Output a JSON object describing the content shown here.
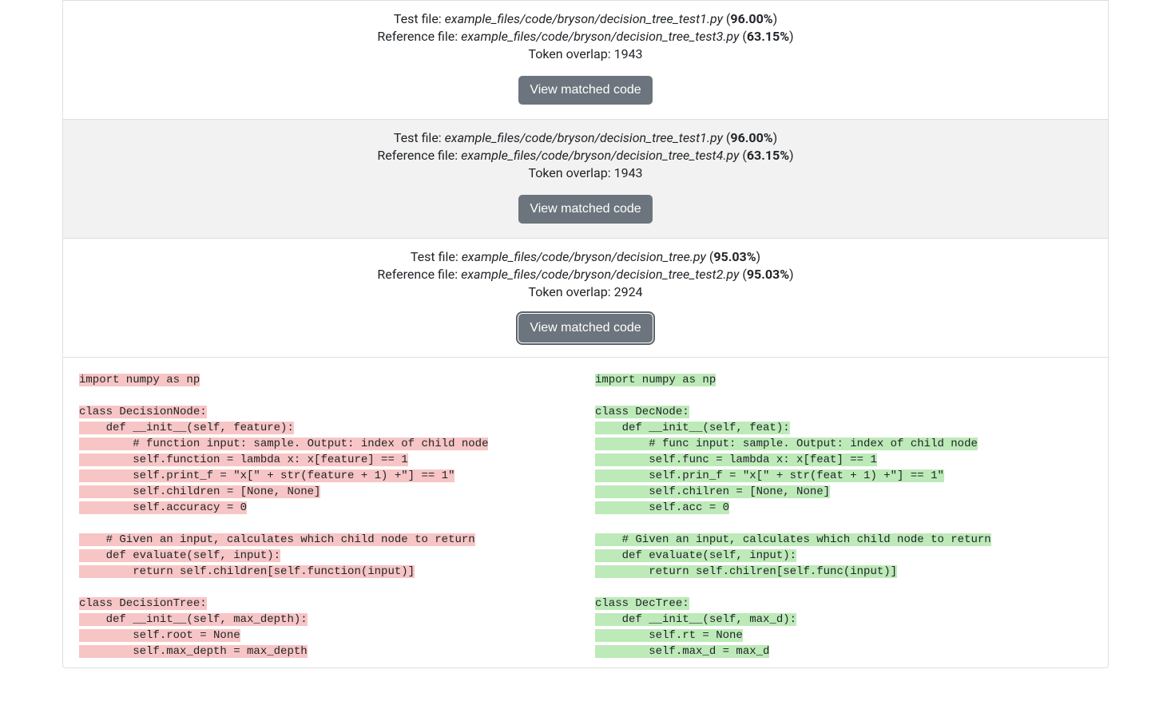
{
  "labels": {
    "test_file": "Test file: ",
    "reference_file": "Reference file: ",
    "token_overlap": "Token overlap: ",
    "view_button": "View matched code"
  },
  "colors": {
    "card_border": "#dfdfdf",
    "alt_bg": "#f2f2f2",
    "button_bg": "#6c757d",
    "button_fg": "#ffffff",
    "highlight_left": "#f7c5c5",
    "highlight_right": "#bdeab8"
  },
  "results": [
    {
      "test_file": "example_files/code/bryson/decision_tree_test1.py",
      "test_pct": "96.00%",
      "ref_file": "example_files/code/bryson/decision_tree_test3.py",
      "ref_pct": "63.15%",
      "token_overlap": "1943",
      "alt": false,
      "expanded": false
    },
    {
      "test_file": "example_files/code/bryson/decision_tree_test1.py",
      "test_pct": "96.00%",
      "ref_file": "example_files/code/bryson/decision_tree_test4.py",
      "ref_pct": "63.15%",
      "token_overlap": "1943",
      "alt": true,
      "expanded": false
    },
    {
      "test_file": "example_files/code/bryson/decision_tree.py",
      "test_pct": "95.03%",
      "ref_file": "example_files/code/bryson/decision_tree_test2.py",
      "ref_pct": "95.03%",
      "token_overlap": "2924",
      "alt": false,
      "expanded": true,
      "code_left": [
        {
          "t": "import numpy as np",
          "hl": true
        },
        {
          "t": "",
          "hl": false
        },
        {
          "t": "class DecisionNode:",
          "hl": true
        },
        {
          "t": "    def __init__(self, feature):",
          "hl": true
        },
        {
          "t": "        # function input: sample. Output: index of child node",
          "hl": true
        },
        {
          "t": "        self.function = lambda x: x[feature] == 1",
          "hl": true
        },
        {
          "t": "        self.print_f = \"x[\" + str(feature + 1) +\"] == 1\"",
          "hl": true
        },
        {
          "t": "        self.children = [None, None]",
          "hl": true
        },
        {
          "t": "        self.accuracy = 0",
          "hl": true
        },
        {
          "t": "",
          "hl": false
        },
        {
          "t": "    # Given an input, calculates which child node to return",
          "hl": true
        },
        {
          "t": "    def evaluate(self, input):",
          "hl": true
        },
        {
          "t": "        return self.children[self.function(input)]",
          "hl": true
        },
        {
          "t": "",
          "hl": false
        },
        {
          "t": "class DecisionTree:",
          "hl": true
        },
        {
          "t": "    def __init__(self, max_depth):",
          "hl": true
        },
        {
          "t": "        self.root = None",
          "hl": true
        },
        {
          "t": "        self.max_depth = max_depth",
          "hl": true
        }
      ],
      "code_right": [
        {
          "t": "import numpy as np",
          "hl": true
        },
        {
          "t": "",
          "hl": false
        },
        {
          "t": "class DecNode:",
          "hl": true
        },
        {
          "t": "    def __init__(self, feat):",
          "hl": true
        },
        {
          "t": "        # func input: sample. Output: index of child node",
          "hl": true
        },
        {
          "t": "        self.func = lambda x: x[feat] == 1",
          "hl": true
        },
        {
          "t": "        self.prin_f = \"x[\" + str(feat + 1) +\"] == 1\"",
          "hl": true
        },
        {
          "t": "        self.chilren = [None, None]",
          "hl": true
        },
        {
          "t": "        self.acc = 0",
          "hl": true
        },
        {
          "t": "",
          "hl": false
        },
        {
          "t": "    # Given an input, calculates which child node to return",
          "hl": true
        },
        {
          "t": "    def evaluate(self, input):",
          "hl": true
        },
        {
          "t": "        return self.chilren[self.func(input)]",
          "hl": true
        },
        {
          "t": "",
          "hl": false
        },
        {
          "t": "class DecTree:",
          "hl": true
        },
        {
          "t": "    def __init__(self, max_d):",
          "hl": true
        },
        {
          "t": "        self.rt = None",
          "hl": true
        },
        {
          "t": "        self.max_d = max_d",
          "hl": true
        }
      ]
    }
  ]
}
